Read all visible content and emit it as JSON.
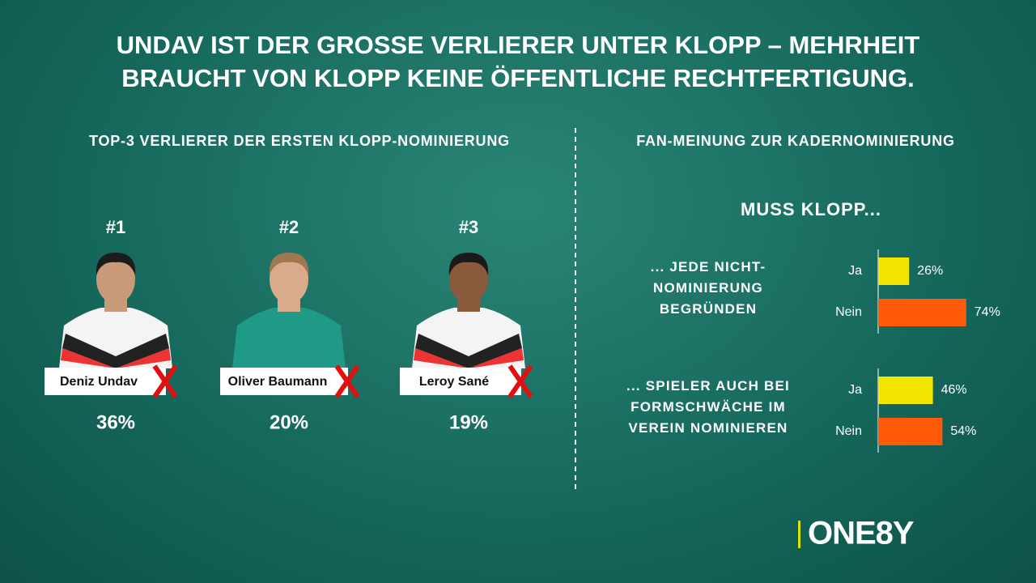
{
  "title_lines": [
    "UNDAV IST DER GROSSE VERLIERER UNTER KLOPP – MEHRHEIT",
    "BRAUCHT VON KLOPP KEINE ÖFFENTLICHE RECHTFERTIGUNG."
  ],
  "losers": {
    "title": "TOP-3 VERLIERER DER ERSTEN KLOPP-NOMINIERUNG",
    "items": [
      {
        "rank": "#1",
        "name": "Deniz Undav",
        "share": "36%"
      },
      {
        "rank": "#2",
        "name": "Oliver Baumann",
        "share": "20%"
      },
      {
        "rank": "#3",
        "name": "Leroy Sané",
        "share": "19%"
      }
    ]
  },
  "chart_data": {
    "type": "bar",
    "orientation": "horizontal",
    "title": "FAN-MEINUNG ZUR KADERNOMINIERUNG",
    "subtitle": "MUSS KLOPP...",
    "categories": [
      "... JEDE NICHT-NOMINIERUNG BEGRÜNDEN",
      "... SPIELER AUCH BEI FORMSCHWÄCHE IM VEREIN NOMINIEREN"
    ],
    "series": [
      {
        "name": "Ja",
        "color": "#f2e500",
        "values": [
          26,
          46
        ],
        "value_labels": [
          "26%",
          "46%"
        ]
      },
      {
        "name": "Nein",
        "color": "#ff5a0a",
        "values": [
          74,
          54
        ],
        "value_labels": [
          "74%",
          "54%"
        ]
      }
    ]
  },
  "logo": "ONE8Y"
}
